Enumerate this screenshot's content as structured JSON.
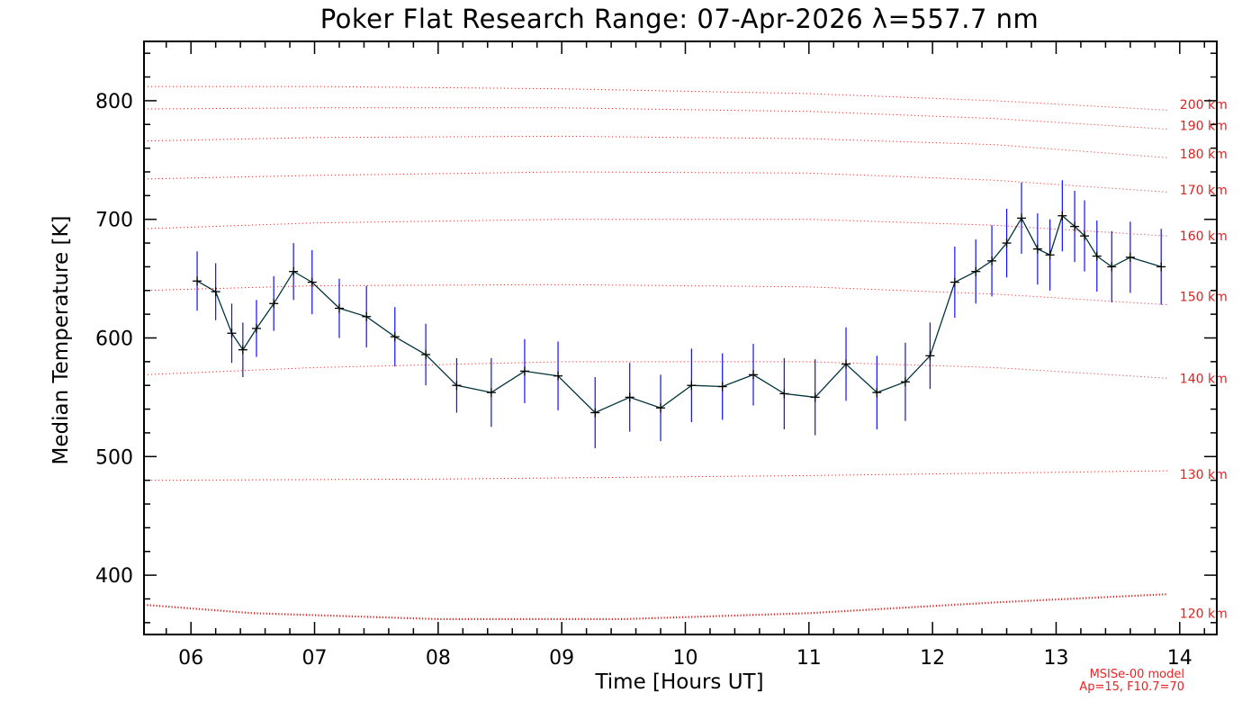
{
  "chart_data": {
    "type": "line",
    "title": "Poker Flat Research Range: 07-Apr-2026 λ=557.7 nm",
    "xlabel": "Time [Hours UT]",
    "ylabel": "Median Temperature [K]",
    "xlim": [
      5.62,
      14.3
    ],
    "ylim": [
      350,
      850
    ],
    "x_ticks": [
      6,
      7,
      8,
      9,
      10,
      11,
      12,
      13,
      14
    ],
    "x_tick_labels": [
      "06",
      "07",
      "08",
      "09",
      "10",
      "11",
      "12",
      "13",
      "14"
    ],
    "y_ticks": [
      400,
      500,
      600,
      700,
      800
    ],
    "y_tick_labels": [
      "400",
      "500",
      "600",
      "700",
      "800"
    ],
    "colors": {
      "line": "#00343c",
      "errorbar": "#1010ee",
      "marker": "#000000",
      "model": "#e02020"
    },
    "series": [
      {
        "name": "Median Temperature",
        "x": [
          6.05,
          6.2,
          6.33,
          6.42,
          6.53,
          6.67,
          6.83,
          6.98,
          7.2,
          7.42,
          7.65,
          7.9,
          8.15,
          8.43,
          8.7,
          8.97,
          9.27,
          9.55,
          9.8,
          10.05,
          10.3,
          10.55,
          10.8,
          11.05,
          11.3,
          11.55,
          11.78,
          11.98,
          12.18,
          12.35,
          12.48,
          12.6,
          12.72,
          12.85,
          12.95,
          13.05,
          13.15,
          13.23,
          13.33,
          13.45,
          13.6,
          13.85
        ],
        "y": [
          648,
          639,
          604,
          590,
          608,
          629,
          656,
          647,
          625,
          618,
          601,
          586,
          560,
          554,
          572,
          568,
          537,
          550,
          541,
          560,
          559,
          569,
          553,
          550,
          578,
          554,
          563,
          585,
          647,
          656,
          665,
          680,
          701,
          675,
          670,
          703,
          694,
          686,
          669,
          660,
          668,
          660
        ],
        "error": [
          25,
          24,
          25,
          23,
          24,
          23,
          24,
          27,
          25,
          26,
          25,
          26,
          23,
          29,
          27,
          29,
          30,
          29,
          28,
          31,
          28,
          26,
          30,
          32,
          31,
          31,
          33,
          28,
          30,
          27,
          30,
          29,
          30,
          30,
          30,
          30,
          30,
          30,
          30,
          30,
          30,
          32
        ]
      }
    ],
    "model_lines": [
      {
        "label": "120 km",
        "x": [
          5.62,
          6.5,
          8,
          9.5,
          11,
          12.5,
          13.9
        ],
        "y": [
          375,
          368,
          363,
          363,
          368,
          377,
          384
        ]
      },
      {
        "label": "130 km",
        "x": [
          5.62,
          8,
          11,
          13.9
        ],
        "y": [
          480,
          481,
          484,
          488
        ]
      },
      {
        "label": "140 km",
        "x": [
          5.62,
          7,
          9,
          11,
          12.5,
          13.9
        ],
        "y": [
          569,
          575,
          580,
          580,
          575,
          566
        ]
      },
      {
        "label": "150 km",
        "x": [
          5.62,
          7,
          9,
          11,
          12.5,
          13.9
        ],
        "y": [
          640,
          644,
          645,
          643,
          637,
          628
        ]
      },
      {
        "label": "160 km",
        "x": [
          5.62,
          7,
          9,
          11,
          12.5,
          13.9
        ],
        "y": [
          692,
          697,
          700,
          700,
          695,
          686
        ]
      },
      {
        "label": "170 km",
        "x": [
          5.62,
          7,
          9,
          11,
          12.5,
          13.9
        ],
        "y": [
          734,
          737,
          740,
          739,
          733,
          723
        ]
      },
      {
        "label": "180 km",
        "x": [
          5.62,
          7,
          9,
          11,
          12.5,
          13.9
        ],
        "y": [
          766,
          769,
          770,
          768,
          763,
          752
        ]
      },
      {
        "label": "190 km",
        "x": [
          5.62,
          7,
          9,
          11,
          12.5,
          13.9
        ],
        "y": [
          793,
          794,
          794,
          791,
          785,
          776
        ]
      },
      {
        "label": "200 km",
        "x": [
          5.62,
          7,
          9,
          11,
          12.5,
          13.9
        ],
        "y": [
          812,
          812,
          810,
          806,
          800,
          792
        ]
      }
    ],
    "model_label_y": [
      368,
      485,
      566,
      635,
      686,
      725,
      755,
      779,
      797
    ],
    "model_label_x": 14.0,
    "grid": false,
    "model_note": [
      "MSISe-00 model",
      "Ap=15, F10.7=70"
    ]
  }
}
